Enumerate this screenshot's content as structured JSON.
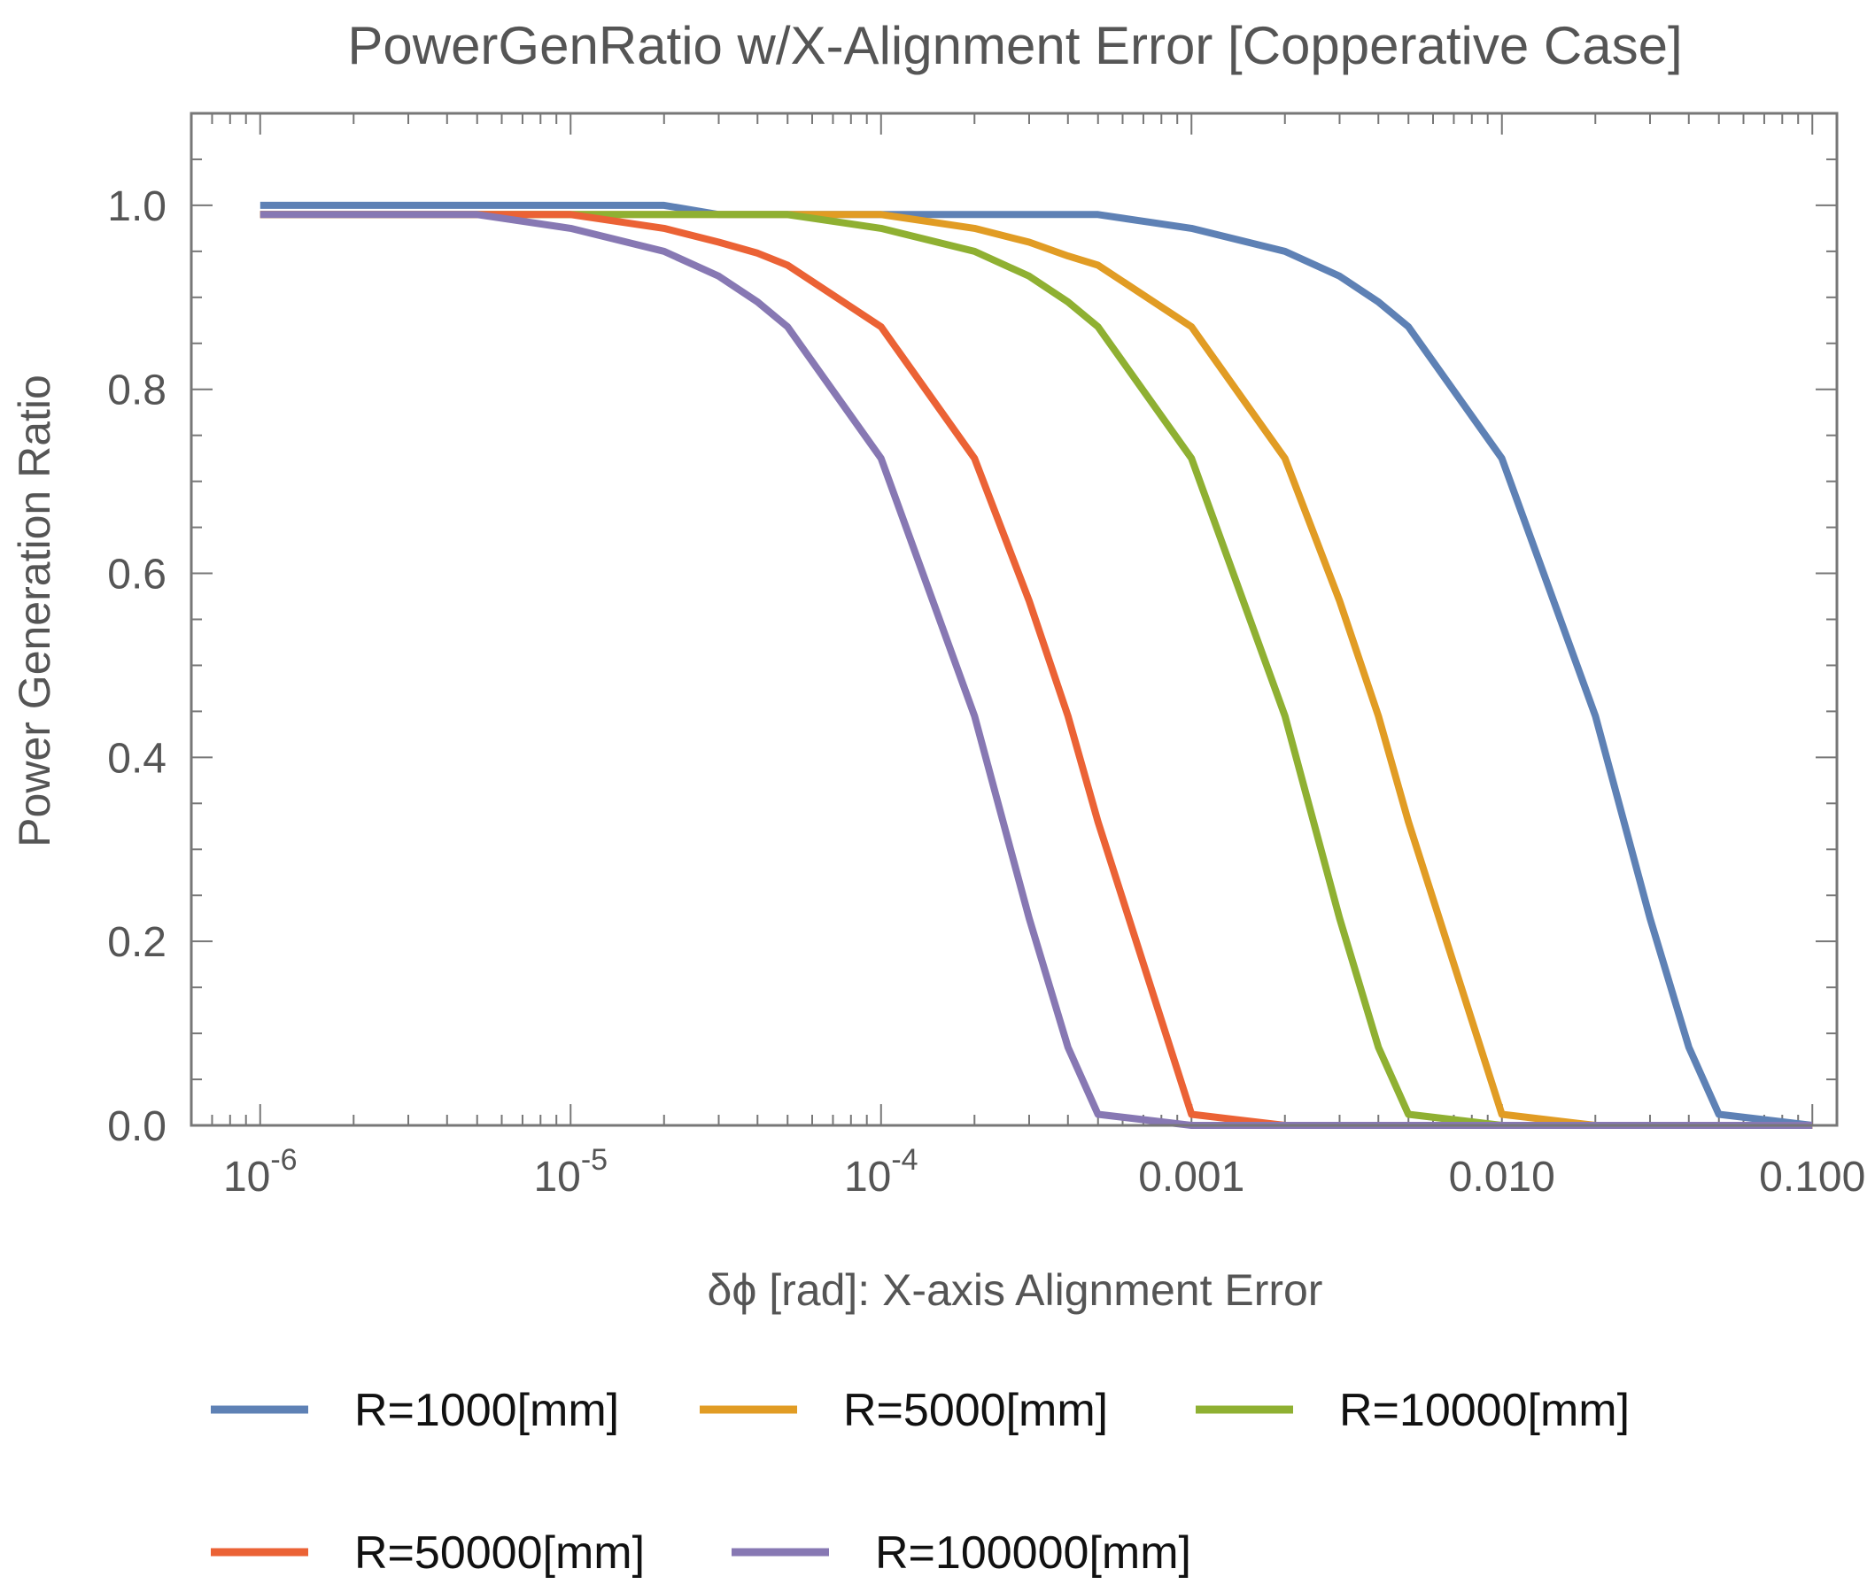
{
  "chart_data": {
    "type": "line",
    "title": "PowerGenRatio w/X-Alignment Error [Copperative Case]",
    "xlabel": "δϕ [rad]: X-axis Alignment Error",
    "ylabel": "Power Generation Ratio",
    "xscale": "log",
    "xlim": [
      6e-07,
      0.12
    ],
    "ylim": [
      0,
      1.1
    ],
    "frame": true,
    "grid": false,
    "legend_position": "bottom",
    "xticks": [
      {
        "value": 1e-06,
        "base": "10",
        "exp": "-6",
        "text": ""
      },
      {
        "value": 1e-05,
        "base": "10",
        "exp": "-5",
        "text": ""
      },
      {
        "value": 0.0001,
        "base": "10",
        "exp": "-4",
        "text": ""
      },
      {
        "value": 0.001,
        "base": "",
        "exp": "",
        "text": "0.001"
      },
      {
        "value": 0.01,
        "base": "",
        "exp": "",
        "text": "0.010"
      },
      {
        "value": 0.1,
        "base": "",
        "exp": "",
        "text": "0.100"
      }
    ],
    "yticks": [
      {
        "value": 0.0,
        "text": "0.0"
      },
      {
        "value": 0.2,
        "text": "0.2"
      },
      {
        "value": 0.4,
        "text": "0.4"
      },
      {
        "value": 0.6,
        "text": "0.6"
      },
      {
        "value": 0.8,
        "text": "0.8"
      },
      {
        "value": 1.0,
        "text": "1.0"
      }
    ],
    "series": [
      {
        "name": "R=1000[mm]",
        "color": "#5E81B5",
        "x": [
          1e-06,
          2e-06,
          5e-06,
          1e-05,
          2e-05,
          3e-05,
          5e-05,
          0.0001,
          0.0002,
          0.0003,
          0.0005,
          0.001,
          0.002,
          0.003,
          0.004,
          0.005,
          0.01,
          0.02,
          0.03,
          0.04,
          0.05,
          0.1
        ],
        "y": [
          1.0,
          1.0,
          1.0,
          1.0,
          1.0,
          0.99,
          0.99,
          0.99,
          0.99,
          0.99,
          0.99,
          0.975,
          0.95,
          0.923,
          0.895,
          0.868,
          0.725,
          0.445,
          0.225,
          0.085,
          0.012,
          0.0
        ]
      },
      {
        "name": "R=5000[mm]",
        "color": "#E19C24",
        "x": [
          1e-06,
          2e-06,
          5e-06,
          1e-05,
          2e-05,
          3e-05,
          5e-05,
          0.0001,
          0.0002,
          0.0003,
          0.0004,
          0.0005,
          0.001,
          0.002,
          0.003,
          0.004,
          0.005,
          0.01,
          0.02,
          0.1
        ],
        "y": [
          0.99,
          0.99,
          0.99,
          0.99,
          0.99,
          0.99,
          0.99,
          0.99,
          0.975,
          0.96,
          0.945,
          0.935,
          0.868,
          0.725,
          0.57,
          0.445,
          0.33,
          0.012,
          0.0,
          0.0
        ]
      },
      {
        "name": "R=10000[mm]",
        "color": "#8FB032",
        "x": [
          1e-06,
          2e-06,
          5e-06,
          1e-05,
          2e-05,
          3e-05,
          5e-05,
          0.0001,
          0.0002,
          0.0003,
          0.0004,
          0.0005,
          0.001,
          0.002,
          0.003,
          0.004,
          0.005,
          0.01,
          0.1
        ],
        "y": [
          0.99,
          0.99,
          0.99,
          0.99,
          0.99,
          0.99,
          0.99,
          0.975,
          0.95,
          0.923,
          0.895,
          0.868,
          0.725,
          0.445,
          0.225,
          0.085,
          0.012,
          0.0,
          0.0
        ]
      },
      {
        "name": "R=50000[mm]",
        "color": "#EB6235",
        "x": [
          1e-06,
          2e-06,
          5e-06,
          1e-05,
          2e-05,
          3e-05,
          4e-05,
          5e-05,
          0.0001,
          0.0002,
          0.0003,
          0.0004,
          0.0005,
          0.001,
          0.002,
          0.1
        ],
        "y": [
          0.99,
          0.99,
          0.99,
          0.99,
          0.975,
          0.96,
          0.948,
          0.935,
          0.868,
          0.725,
          0.57,
          0.445,
          0.33,
          0.012,
          0.0,
          0.0
        ]
      },
      {
        "name": "R=100000[mm]",
        "color": "#8778B3",
        "x": [
          1e-06,
          2e-06,
          5e-06,
          1e-05,
          2e-05,
          3e-05,
          4e-05,
          5e-05,
          0.0001,
          0.0002,
          0.0003,
          0.0004,
          0.0005,
          0.001,
          0.1
        ],
        "y": [
          0.99,
          0.99,
          0.99,
          0.975,
          0.95,
          0.923,
          0.895,
          0.868,
          0.725,
          0.445,
          0.225,
          0.085,
          0.012,
          0.0,
          0.0
        ]
      }
    ]
  }
}
